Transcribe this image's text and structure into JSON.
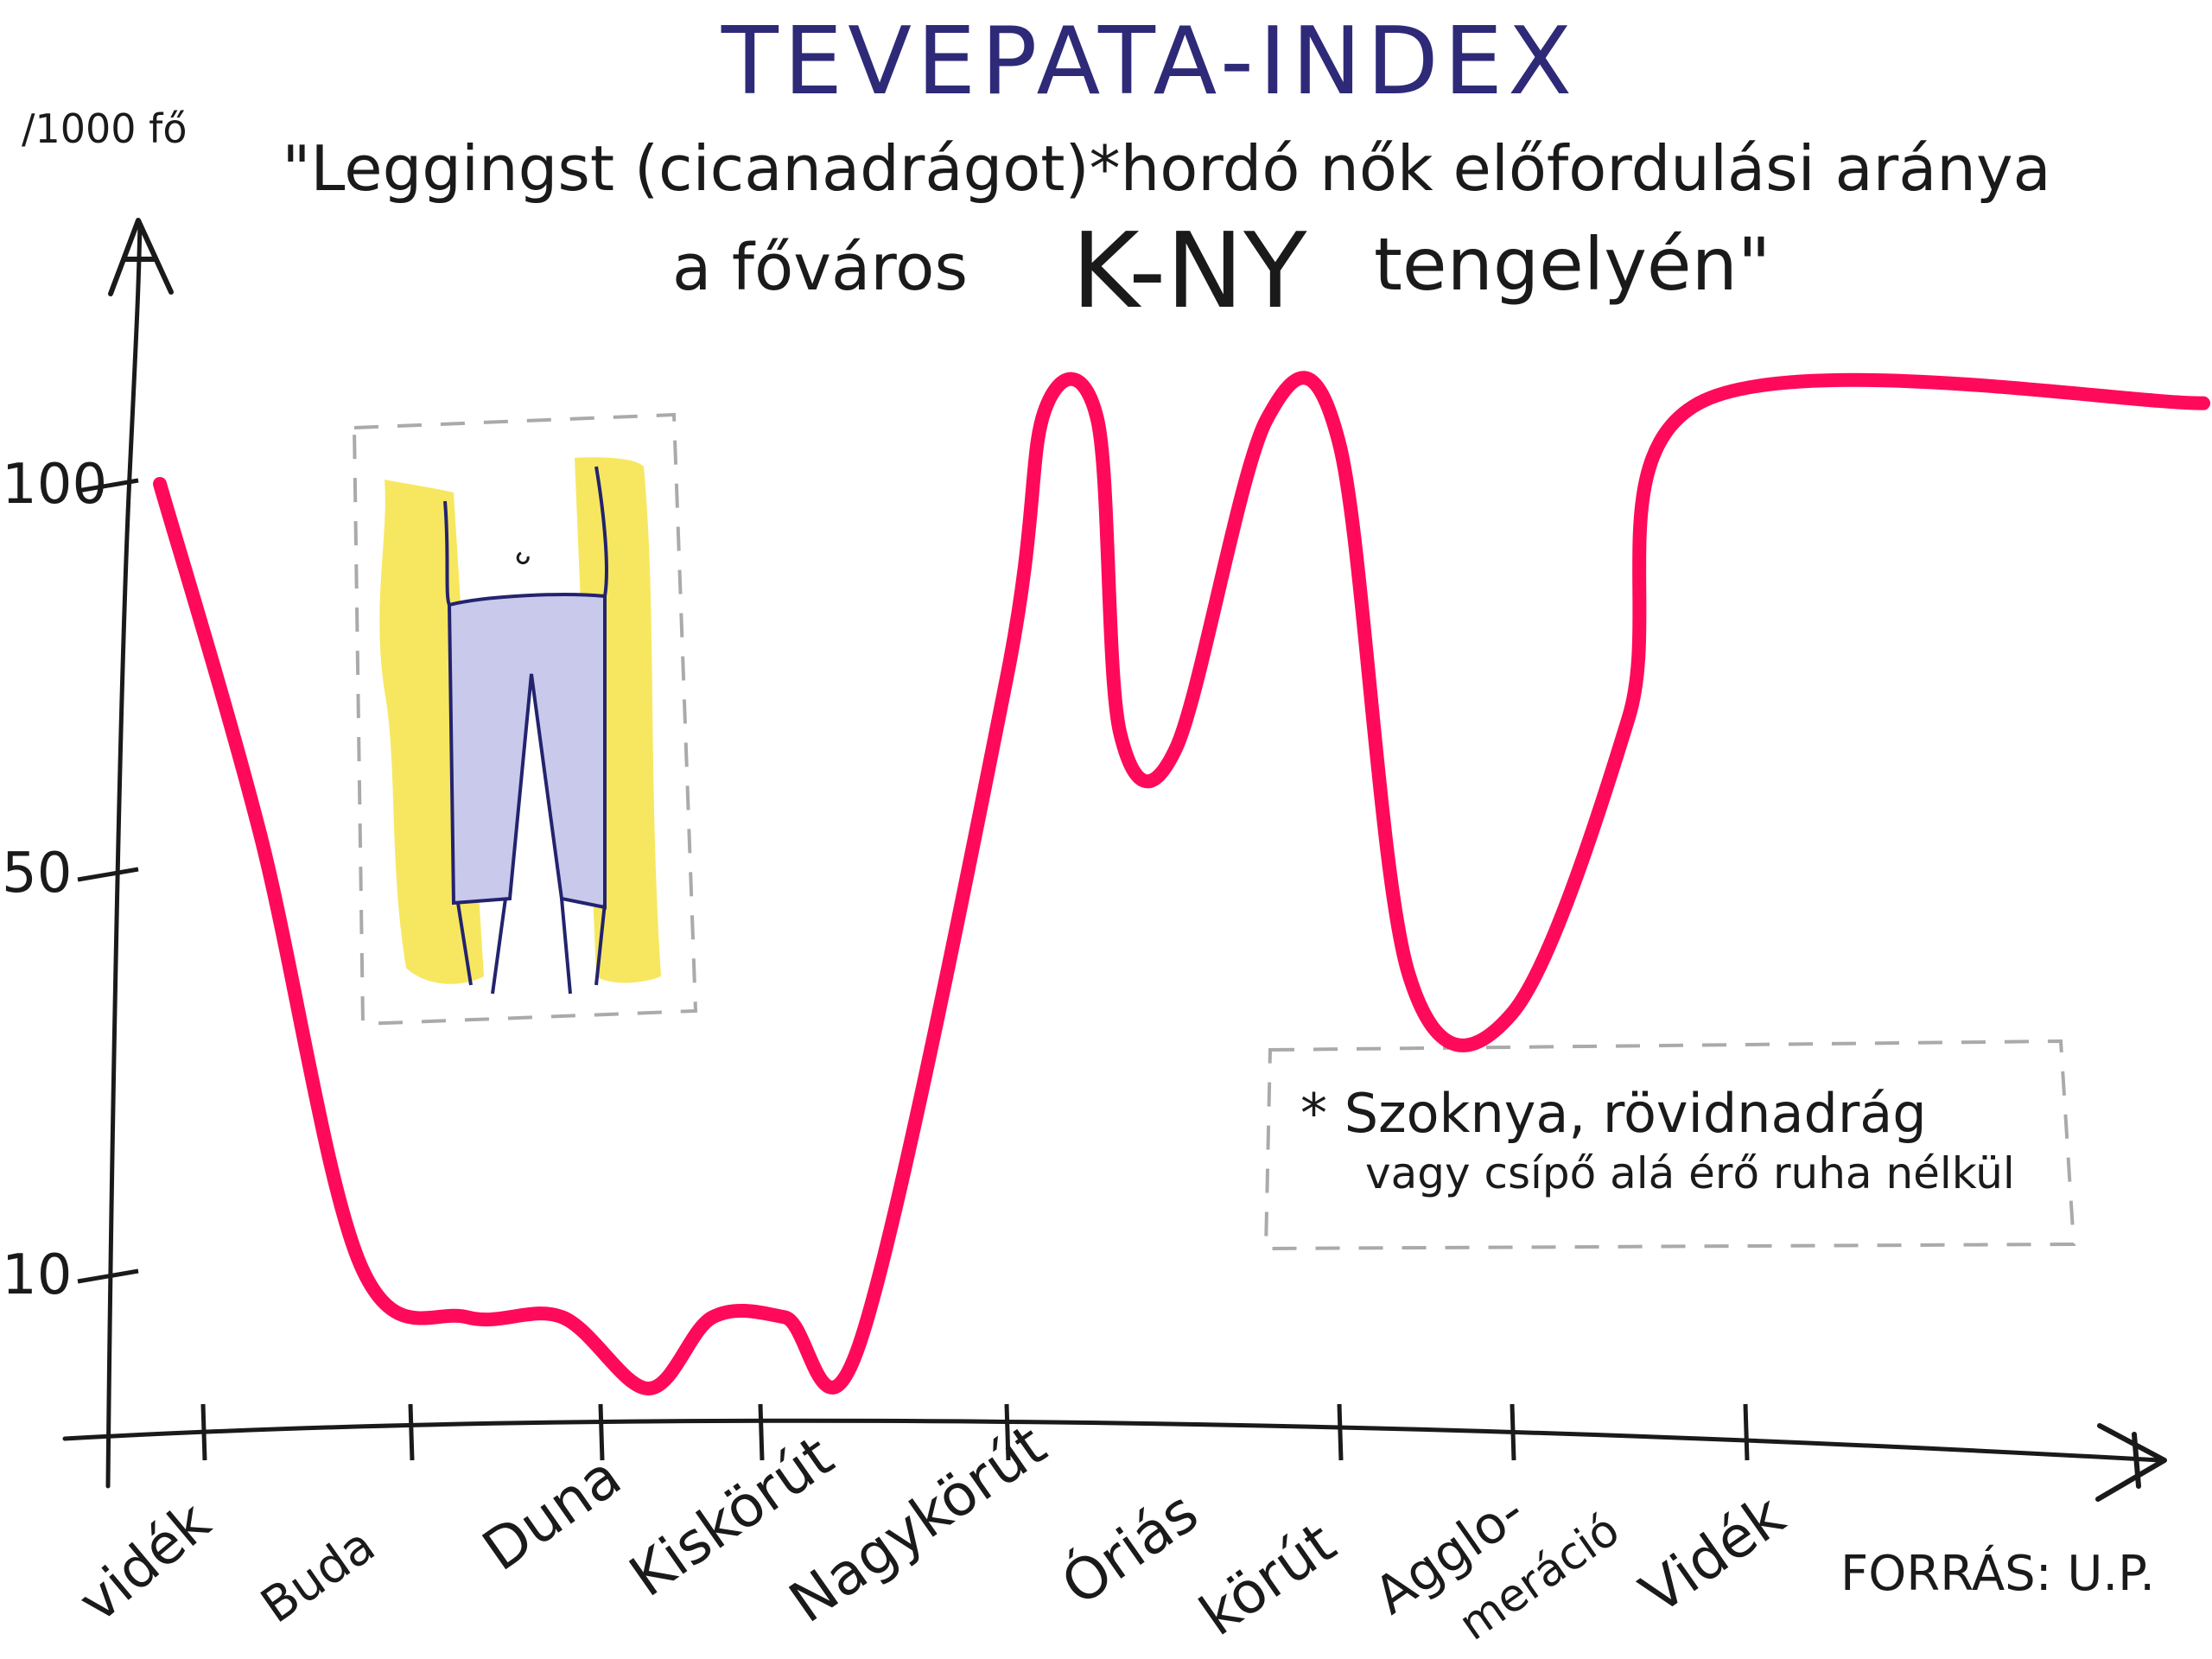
{
  "chart_data": {
    "type": "line",
    "title": "TEVEPATA-INDEX",
    "subtitle_line1": "\"Leggingst (cicanadrágot)*hordó nők előfordulási aránya",
    "subtitle_line2_prefix": "a főváros",
    "subtitle_line2_emph": "K-NY",
    "subtitle_line2_suffix": "tengelyén\"",
    "ylabel": "/1000 fő",
    "y_ticks": [
      {
        "value": 10,
        "label": "10"
      },
      {
        "value": 50,
        "label": "50"
      },
      {
        "value": 100,
        "label": "100"
      }
    ],
    "x_categories": [
      "vidék",
      "Buda",
      "Duna",
      "Kiskörút",
      "Nagykörút",
      "Óriás",
      "körút",
      "Agglo-",
      "meráció",
      "Vidék"
    ],
    "series": [
      {
        "color": "#ff0a5a",
        "points": [
          {
            "x": 0.0,
            "y": 100
          },
          {
            "x": 0.4,
            "y": 55
          },
          {
            "x": 0.8,
            "y": 11
          },
          {
            "x": 1.3,
            "y": 7
          },
          {
            "x": 1.8,
            "y": 7
          },
          {
            "x": 2.3,
            "y": 2
          },
          {
            "x": 2.7,
            "y": 7
          },
          {
            "x": 3.1,
            "y": 7
          },
          {
            "x": 3.4,
            "y": 5
          },
          {
            "x": 4.0,
            "y": 75
          },
          {
            "x": 4.25,
            "y": 109
          },
          {
            "x": 4.6,
            "y": 108
          },
          {
            "x": 4.75,
            "y": 68
          },
          {
            "x": 5.1,
            "y": 66
          },
          {
            "x": 5.6,
            "y": 108
          },
          {
            "x": 6.0,
            "y": 105
          },
          {
            "x": 6.4,
            "y": 40
          },
          {
            "x": 7.0,
            "y": 36
          },
          {
            "x": 7.5,
            "y": 70
          },
          {
            "x": 7.8,
            "y": 110
          },
          {
            "x": 9.2,
            "y": 110
          }
        ]
      }
    ],
    "footnote_line1": "* Szoknya, rövidnadrág",
    "footnote_line2": "vagy csípő alá érő ruha nélkül",
    "source": "FORRÁS: U.P.",
    "grid": false,
    "legend": "none"
  },
  "colors": {
    "line": "#ff0a5a",
    "title": "#2e2a78",
    "ink": "#1a1a1a",
    "legging_fill": "#c9c9ec",
    "legging_outline": "#23236e",
    "highlight": "#f7e760",
    "dashed_box": "#aaaaaa"
  },
  "illustration": {
    "description_icon": "leggings-illustration"
  }
}
